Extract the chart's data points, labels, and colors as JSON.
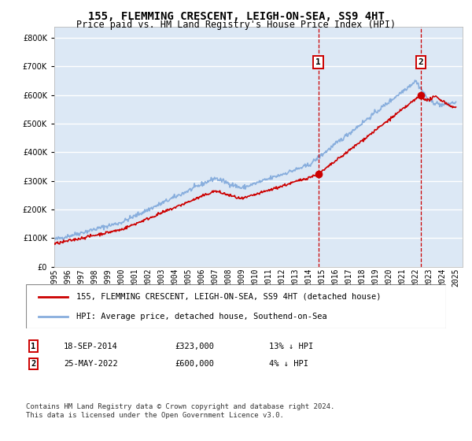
{
  "title": "155, FLEMMING CRESCENT, LEIGH-ON-SEA, SS9 4HT",
  "subtitle": "Price paid vs. HM Land Registry's House Price Index (HPI)",
  "legend_label_red": "155, FLEMMING CRESCENT, LEIGH-ON-SEA, SS9 4HT (detached house)",
  "legend_label_blue": "HPI: Average price, detached house, Southend-on-Sea",
  "ann1_label": "1",
  "ann1_date": "18-SEP-2014",
  "ann1_price": "£323,000",
  "ann1_hpi": "13% ↓ HPI",
  "ann1_x": 2014.72,
  "ann1_y": 323000,
  "ann2_label": "2",
  "ann2_date": "25-MAY-2022",
  "ann2_price": "£600,000",
  "ann2_hpi": "4% ↓ HPI",
  "ann2_x": 2022.39,
  "ann2_y": 600000,
  "footer": "Contains HM Land Registry data © Crown copyright and database right 2024.\nThis data is licensed under the Open Government Licence v3.0.",
  "ylim": [
    0,
    840000
  ],
  "xlim_start": 1995.0,
  "xlim_end": 2025.5,
  "bg_color": "#dce8f5",
  "grid_color": "#ffffff",
  "red_color": "#cc0000",
  "blue_color": "#88aedd",
  "vline_color": "#cc0000",
  "box_color": "#cc0000",
  "title_fontsize": 10,
  "subtitle_fontsize": 8.5,
  "tick_fontsize": 7,
  "legend_fontsize": 7.5,
  "ann_fontsize": 7.5,
  "footer_fontsize": 6.5
}
